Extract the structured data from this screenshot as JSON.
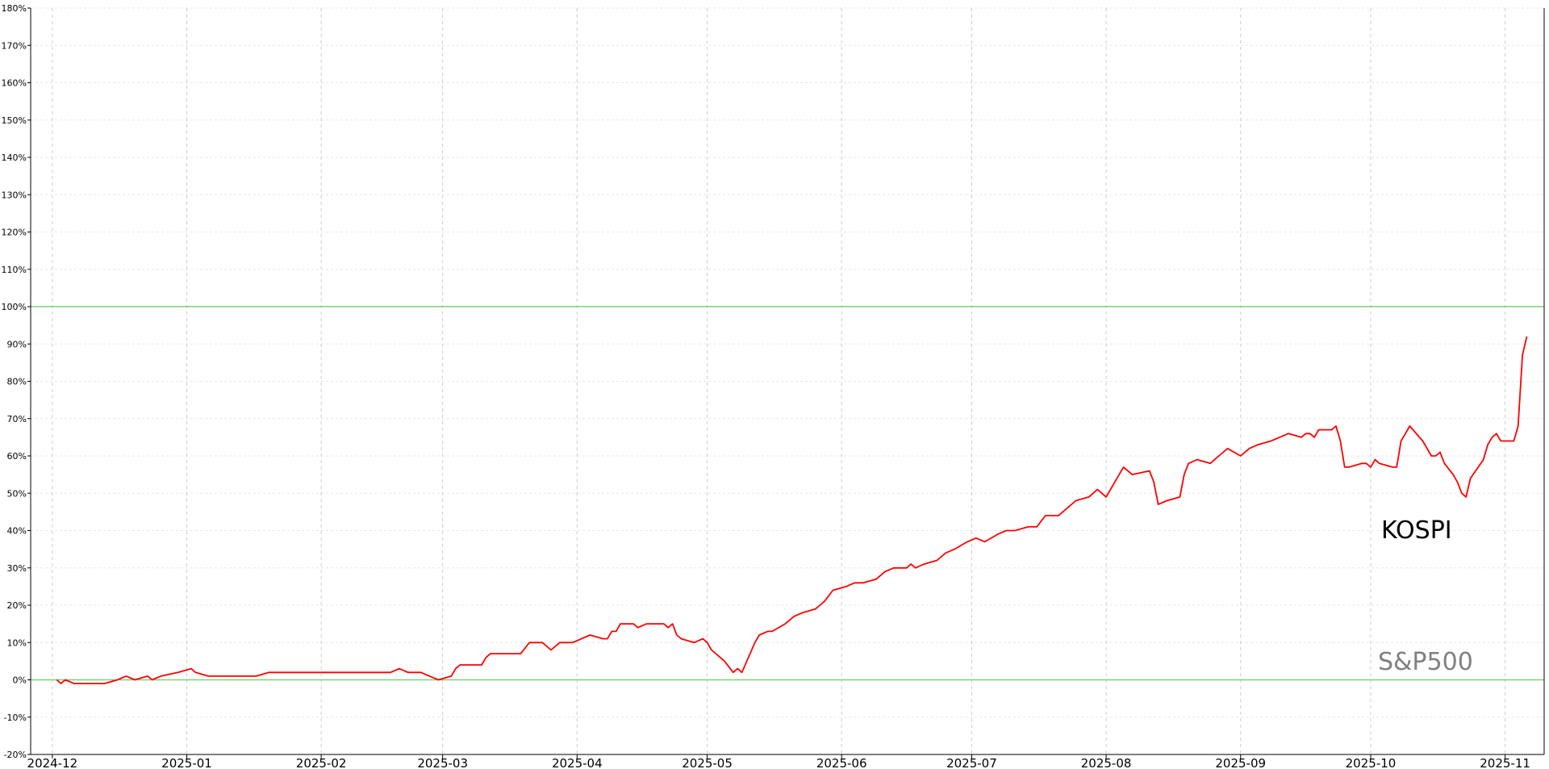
{
  "colors": {
    "red_series": "#ff0000",
    "kospi": "#000000",
    "sp500": "#666666",
    "reference_lines": "#7bd17b",
    "grid_h": "#e6e6e6",
    "grid_v": "#cccccc",
    "sp500_label": "#808080"
  },
  "chart_data": {
    "type": "line",
    "title": "",
    "xlabel": "",
    "ylabel": "",
    "ylim": [
      -20,
      180
    ],
    "yticks": [
      -20,
      -10,
      0,
      10,
      20,
      30,
      40,
      50,
      60,
      70,
      80,
      90,
      100,
      110,
      120,
      130,
      140,
      150,
      160,
      170,
      180
    ],
    "ytick_labels": [
      "-20%",
      "-10%",
      "0%",
      "10%",
      "20%",
      "30%",
      "40%",
      "50%",
      "60%",
      "70%",
      "80%",
      "90%",
      "100%",
      "110%",
      "120%",
      "130%",
      "140%",
      "150%",
      "160%",
      "170%",
      "180%"
    ],
    "xlim": [
      "2024-11-26",
      "2025-11-10"
    ],
    "xticks": [
      "2024-12-01",
      "2025-01-01",
      "2025-02-01",
      "2025-03-01",
      "2025-04-01",
      "2025-05-01",
      "2025-06-01",
      "2025-07-01",
      "2025-08-01",
      "2025-09-01",
      "2025-10-01",
      "2025-11-01"
    ],
    "xtick_labels": [
      "2024-12",
      "2025-01",
      "2025-02",
      "2025-03",
      "2025-04",
      "2025-05",
      "2025-06",
      "2025-07",
      "2025-08",
      "2025-09",
      "2025-10",
      "2025-11"
    ],
    "reference_lines": [
      0,
      100
    ],
    "grid": "on",
    "series": [
      {
        "name": "",
        "label_text": "",
        "style": "red",
        "points": [
          [
            "2024-12-02",
            0
          ],
          [
            "2024-12-03",
            -1
          ],
          [
            "2024-12-04",
            0
          ],
          [
            "2024-12-06",
            -1
          ],
          [
            "2024-12-09",
            -1
          ],
          [
            "2024-12-11",
            -1
          ],
          [
            "2024-12-13",
            -1
          ],
          [
            "2024-12-16",
            0
          ],
          [
            "2024-12-18",
            1
          ],
          [
            "2024-12-20",
            0
          ],
          [
            "2024-12-23",
            1
          ],
          [
            "2024-12-24",
            0
          ],
          [
            "2024-12-26",
            1
          ],
          [
            "2024-12-30",
            2
          ],
          [
            "2025-01-02",
            3
          ],
          [
            "2025-01-03",
            2
          ],
          [
            "2025-01-06",
            1
          ],
          [
            "2025-01-08",
            1
          ],
          [
            "2025-01-10",
            1
          ],
          [
            "2025-01-13",
            1
          ],
          [
            "2025-01-15",
            1
          ],
          [
            "2025-01-17",
            1
          ],
          [
            "2025-01-20",
            2
          ],
          [
            "2025-01-22",
            2
          ],
          [
            "2025-01-24",
            2
          ],
          [
            "2025-01-27",
            2
          ],
          [
            "2025-01-31",
            2
          ],
          [
            "2025-02-03",
            2
          ],
          [
            "2025-02-05",
            2
          ],
          [
            "2025-02-07",
            2
          ],
          [
            "2025-02-10",
            2
          ],
          [
            "2025-02-12",
            2
          ],
          [
            "2025-02-14",
            2
          ],
          [
            "2025-02-17",
            2
          ],
          [
            "2025-02-19",
            3
          ],
          [
            "2025-02-21",
            2
          ],
          [
            "2025-02-24",
            2
          ],
          [
            "2025-02-26",
            1
          ],
          [
            "2025-02-28",
            0
          ],
          [
            "2025-03-03",
            1
          ],
          [
            "2025-03-04",
            3
          ],
          [
            "2025-03-05",
            4
          ],
          [
            "2025-03-07",
            4
          ],
          [
            "2025-03-10",
            4
          ],
          [
            "2025-03-11",
            6
          ],
          [
            "2025-03-12",
            7
          ],
          [
            "2025-03-14",
            7
          ],
          [
            "2025-03-17",
            7
          ],
          [
            "2025-03-19",
            7
          ],
          [
            "2025-03-21",
            10
          ],
          [
            "2025-03-24",
            10
          ],
          [
            "2025-03-26",
            8
          ],
          [
            "2025-03-28",
            10
          ],
          [
            "2025-03-31",
            10
          ],
          [
            "2025-04-02",
            11
          ],
          [
            "2025-04-04",
            12
          ],
          [
            "2025-04-07",
            11
          ],
          [
            "2025-04-08",
            11
          ],
          [
            "2025-04-09",
            13
          ],
          [
            "2025-04-10",
            13
          ],
          [
            "2025-04-11",
            15
          ],
          [
            "2025-04-14",
            15
          ],
          [
            "2025-04-15",
            14
          ],
          [
            "2025-04-17",
            15
          ],
          [
            "2025-04-21",
            15
          ],
          [
            "2025-04-22",
            14
          ],
          [
            "2025-04-23",
            15
          ],
          [
            "2025-04-24",
            12
          ],
          [
            "2025-04-25",
            11
          ],
          [
            "2025-04-28",
            10
          ],
          [
            "2025-04-30",
            11
          ],
          [
            "2025-05-01",
            10
          ],
          [
            "2025-05-02",
            8
          ],
          [
            "2025-05-05",
            5
          ],
          [
            "2025-05-07",
            2
          ],
          [
            "2025-05-08",
            3
          ],
          [
            "2025-05-09",
            2
          ],
          [
            "2025-05-12",
            10
          ],
          [
            "2025-05-13",
            12
          ],
          [
            "2025-05-15",
            13
          ],
          [
            "2025-05-16",
            13
          ],
          [
            "2025-05-19",
            15
          ],
          [
            "2025-05-21",
            17
          ],
          [
            "2025-05-23",
            18
          ],
          [
            "2025-05-26",
            19
          ],
          [
            "2025-05-27",
            20
          ],
          [
            "2025-05-28",
            21
          ],
          [
            "2025-05-30",
            24
          ],
          [
            "2025-06-02",
            25
          ],
          [
            "2025-06-04",
            26
          ],
          [
            "2025-06-06",
            26
          ],
          [
            "2025-06-09",
            27
          ],
          [
            "2025-06-11",
            29
          ],
          [
            "2025-06-13",
            30
          ],
          [
            "2025-06-16",
            30
          ],
          [
            "2025-06-17",
            31
          ],
          [
            "2025-06-18",
            30
          ],
          [
            "2025-06-20",
            31
          ],
          [
            "2025-06-23",
            32
          ],
          [
            "2025-06-25",
            34
          ],
          [
            "2025-06-27",
            35
          ],
          [
            "2025-06-30",
            37
          ],
          [
            "2025-07-02",
            38
          ],
          [
            "2025-07-04",
            37
          ],
          [
            "2025-07-07",
            39
          ],
          [
            "2025-07-09",
            40
          ],
          [
            "2025-07-11",
            40
          ],
          [
            "2025-07-14",
            41
          ],
          [
            "2025-07-16",
            41
          ],
          [
            "2025-07-18",
            44
          ],
          [
            "2025-07-21",
            44
          ],
          [
            "2025-07-23",
            46
          ],
          [
            "2025-07-25",
            48
          ],
          [
            "2025-07-28",
            49
          ],
          [
            "2025-07-30",
            51
          ],
          [
            "2025-08-01",
            49
          ],
          [
            "2025-08-04",
            55
          ],
          [
            "2025-08-05",
            57
          ],
          [
            "2025-08-07",
            55
          ],
          [
            "2025-08-11",
            56
          ],
          [
            "2025-08-12",
            53
          ],
          [
            "2025-08-13",
            47
          ],
          [
            "2025-08-15",
            48
          ],
          [
            "2025-08-18",
            49
          ],
          [
            "2025-08-19",
            55
          ],
          [
            "2025-08-20",
            58
          ],
          [
            "2025-08-22",
            59
          ],
          [
            "2025-08-25",
            58
          ],
          [
            "2025-08-27",
            60
          ],
          [
            "2025-08-29",
            62
          ],
          [
            "2025-09-01",
            60
          ],
          [
            "2025-09-03",
            62
          ],
          [
            "2025-09-05",
            63
          ],
          [
            "2025-09-08",
            64
          ],
          [
            "2025-09-10",
            65
          ],
          [
            "2025-09-12",
            66
          ],
          [
            "2025-09-15",
            65
          ],
          [
            "2025-09-16",
            66
          ],
          [
            "2025-09-17",
            66
          ],
          [
            "2025-09-18",
            65
          ],
          [
            "2025-09-19",
            67
          ],
          [
            "2025-09-22",
            67
          ],
          [
            "2025-09-23",
            68
          ],
          [
            "2025-09-24",
            64
          ],
          [
            "2025-09-25",
            57
          ],
          [
            "2025-09-26",
            57
          ],
          [
            "2025-09-29",
            58
          ],
          [
            "2025-09-30",
            58
          ],
          [
            "2025-10-01",
            57
          ],
          [
            "2025-10-02",
            59
          ],
          [
            "2025-10-03",
            58
          ],
          [
            "2025-10-06",
            57
          ],
          [
            "2025-10-07",
            57
          ],
          [
            "2025-10-08",
            64
          ],
          [
            "2025-10-09",
            66
          ],
          [
            "2025-10-10",
            68
          ],
          [
            "2025-10-13",
            64
          ],
          [
            "2025-10-14",
            62
          ],
          [
            "2025-10-15",
            60
          ],
          [
            "2025-10-16",
            60
          ],
          [
            "2025-10-17",
            61
          ],
          [
            "2025-10-18",
            58
          ],
          [
            "2025-10-20",
            55
          ],
          [
            "2025-10-21",
            53
          ],
          [
            "2025-10-22",
            50
          ],
          [
            "2025-10-23",
            49
          ],
          [
            "2025-10-24",
            54
          ],
          [
            "2025-10-27",
            59
          ],
          [
            "2025-10-28",
            63
          ],
          [
            "2025-10-29",
            65
          ],
          [
            "2025-10-30",
            66
          ],
          [
            "2025-10-31",
            64
          ],
          [
            "2025-11-03",
            64
          ],
          [
            "2025-11-04",
            68
          ],
          [
            "2025-11-05",
            87
          ],
          [
            "2025-11-06",
            92
          ]
        ]
      },
      {
        "name": "",
        "label_text": "KOSPI",
        "style": "kospi",
        "points": []
      },
      {
        "name": "",
        "label_text": "S&P500",
        "style": "sp500",
        "points": []
      }
    ]
  }
}
